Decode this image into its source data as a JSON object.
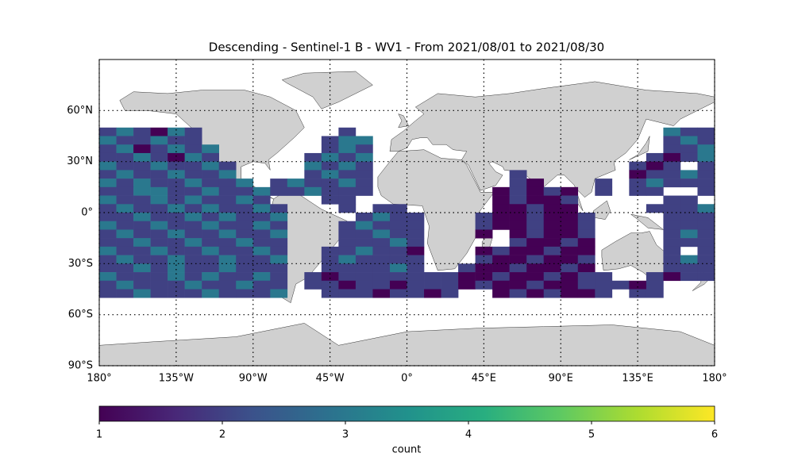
{
  "chart_data": {
    "type": "heatmap",
    "title": "Descending - Sentinel-1 B - WV1 - From 2021/08/01 to 2021/08/30",
    "colormap": "viridis",
    "lon_bins": [
      -180,
      -170,
      -160,
      -150,
      -140,
      -130,
      -120,
      -110,
      -100,
      -90,
      -80,
      -70,
      -60,
      -50,
      -40,
      -30,
      -20,
      -10,
      0,
      10,
      20,
      30,
      40,
      50,
      60,
      70,
      80,
      90,
      100,
      110,
      120,
      130,
      140,
      150,
      160,
      170,
      180
    ],
    "lat_bins": [
      50,
      45,
      40,
      35,
      30,
      25,
      20,
      15,
      10,
      5,
      0,
      -5,
      -10,
      -15,
      -20,
      -25,
      -30,
      -35,
      -40,
      -45,
      -50
    ],
    "values": [
      [
        2,
        3,
        2,
        1,
        3,
        2,
        null,
        null,
        null,
        null,
        null,
        null,
        null,
        null,
        2,
        null,
        null,
        null,
        null,
        null,
        null,
        null,
        null,
        null,
        null,
        null,
        null,
        null,
        null,
        null,
        null,
        null,
        null,
        3,
        2,
        2
      ],
      [
        3,
        2,
        2,
        3,
        2,
        2,
        null,
        null,
        null,
        null,
        null,
        null,
        null,
        2,
        3,
        3,
        null,
        null,
        null,
        null,
        null,
        null,
        null,
        null,
        null,
        null,
        null,
        null,
        null,
        null,
        null,
        null,
        null,
        2,
        3,
        2
      ],
      [
        2,
        3,
        1,
        2,
        3,
        2,
        3,
        null,
        null,
        null,
        null,
        null,
        null,
        2,
        3,
        2,
        null,
        null,
        null,
        null,
        null,
        null,
        null,
        null,
        null,
        null,
        null,
        null,
        null,
        null,
        null,
        null,
        null,
        2,
        2,
        3
      ],
      [
        2,
        2,
        3,
        2,
        1,
        3,
        2,
        null,
        null,
        null,
        null,
        null,
        2,
        3,
        2,
        3,
        null,
        null,
        null,
        null,
        null,
        null,
        null,
        null,
        null,
        null,
        null,
        null,
        null,
        null,
        null,
        null,
        2,
        1,
        2,
        3
      ],
      [
        3,
        2,
        2,
        3,
        2,
        2,
        3,
        2,
        null,
        null,
        null,
        null,
        3,
        2,
        3,
        2,
        null,
        null,
        null,
        null,
        null,
        null,
        null,
        null,
        null,
        null,
        null,
        null,
        null,
        null,
        null,
        2,
        1,
        2,
        null,
        2
      ],
      [
        2,
        3,
        2,
        2,
        3,
        2,
        2,
        3,
        null,
        null,
        null,
        null,
        2,
        3,
        2,
        2,
        null,
        null,
        null,
        null,
        null,
        null,
        null,
        null,
        2,
        null,
        null,
        null,
        null,
        null,
        null,
        1,
        2,
        2,
        3,
        2
      ],
      [
        3,
        2,
        3,
        2,
        2,
        3,
        2,
        2,
        3,
        null,
        2,
        3,
        2,
        2,
        3,
        2,
        null,
        null,
        null,
        null,
        null,
        null,
        null,
        null,
        2,
        1,
        null,
        null,
        null,
        2,
        null,
        2,
        3,
        2,
        2,
        2
      ],
      [
        2,
        2,
        3,
        3,
        2,
        2,
        3,
        2,
        2,
        3,
        2,
        2,
        3,
        2,
        2,
        2,
        null,
        null,
        null,
        null,
        null,
        null,
        null,
        1,
        2,
        1,
        2,
        1,
        null,
        2,
        null,
        2,
        2,
        null,
        null,
        2
      ],
      [
        3,
        2,
        2,
        3,
        2,
        3,
        2,
        2,
        3,
        2,
        null,
        null,
        null,
        2,
        2,
        null,
        null,
        null,
        null,
        null,
        null,
        null,
        null,
        1,
        2,
        1,
        1,
        2,
        null,
        null,
        null,
        null,
        null,
        2,
        2,
        null
      ],
      [
        2,
        3,
        2,
        2,
        3,
        2,
        3,
        2,
        2,
        3,
        2,
        null,
        null,
        null,
        2,
        null,
        2,
        2,
        null,
        null,
        null,
        null,
        null,
        1,
        1,
        2,
        1,
        1,
        null,
        null,
        null,
        null,
        2,
        2,
        2,
        3
      ],
      [
        2,
        2,
        3,
        2,
        2,
        3,
        2,
        3,
        2,
        2,
        3,
        null,
        null,
        null,
        null,
        2,
        3,
        2,
        2,
        null,
        null,
        null,
        2,
        1,
        1,
        2,
        1,
        1,
        2,
        null,
        null,
        null,
        null,
        2,
        2,
        2
      ],
      [
        3,
        2,
        2,
        3,
        2,
        2,
        3,
        2,
        2,
        3,
        2,
        null,
        null,
        null,
        2,
        3,
        2,
        2,
        2,
        null,
        null,
        null,
        2,
        1,
        1,
        2,
        1,
        1,
        2,
        null,
        null,
        null,
        null,
        2,
        2,
        2
      ],
      [
        2,
        3,
        2,
        2,
        3,
        2,
        2,
        3,
        2,
        2,
        3,
        null,
        null,
        null,
        2,
        2,
        3,
        2,
        2,
        null,
        null,
        null,
        1,
        null,
        1,
        2,
        1,
        1,
        2,
        null,
        null,
        null,
        null,
        2,
        3,
        2
      ],
      [
        2,
        2,
        3,
        2,
        2,
        3,
        2,
        2,
        3,
        2,
        2,
        null,
        null,
        null,
        2,
        2,
        2,
        3,
        2,
        null,
        null,
        null,
        null,
        null,
        2,
        1,
        1,
        2,
        1,
        null,
        null,
        null,
        null,
        2,
        2,
        2
      ],
      [
        3,
        2,
        2,
        3,
        2,
        2,
        3,
        2,
        2,
        3,
        2,
        null,
        null,
        2,
        2,
        3,
        2,
        2,
        1,
        null,
        null,
        null,
        1,
        2,
        1,
        1,
        2,
        1,
        1,
        null,
        null,
        null,
        null,
        2,
        null,
        2
      ],
      [
        2,
        3,
        2,
        2,
        3,
        2,
        2,
        3,
        2,
        2,
        3,
        null,
        null,
        2,
        3,
        2,
        2,
        2,
        2,
        null,
        null,
        null,
        2,
        1,
        1,
        2,
        1,
        1,
        2,
        null,
        null,
        null,
        null,
        2,
        3,
        2
      ],
      [
        2,
        2,
        3,
        2,
        3,
        2,
        2,
        3,
        2,
        2,
        2,
        null,
        null,
        2,
        2,
        2,
        2,
        3,
        2,
        null,
        null,
        2,
        1,
        1,
        2,
        1,
        1,
        2,
        1,
        null,
        null,
        null,
        null,
        2,
        2,
        2
      ],
      [
        3,
        2,
        2,
        2,
        3,
        2,
        3,
        2,
        2,
        3,
        2,
        null,
        2,
        1,
        2,
        2,
        2,
        2,
        2,
        2,
        2,
        1,
        1,
        2,
        1,
        1,
        2,
        1,
        2,
        2,
        null,
        null,
        2,
        1,
        2,
        2
      ],
      [
        2,
        3,
        2,
        2,
        2,
        3,
        2,
        2,
        3,
        2,
        2,
        null,
        2,
        2,
        1,
        2,
        2,
        1,
        2,
        2,
        2,
        1,
        2,
        1,
        1,
        2,
        1,
        1,
        2,
        2,
        2,
        1,
        2,
        null,
        null,
        null
      ],
      [
        2,
        2,
        3,
        2,
        2,
        2,
        3,
        2,
        2,
        2,
        3,
        null,
        null,
        2,
        2,
        2,
        1,
        2,
        2,
        1,
        2,
        null,
        null,
        1,
        2,
        1,
        2,
        1,
        1,
        2,
        null,
        2,
        2,
        null,
        null,
        null
      ]
    ],
    "xlim": [
      -180,
      180
    ],
    "ylim": [
      -90,
      90
    ],
    "xticks": [
      {
        "value": -180,
        "label": "180°"
      },
      {
        "value": -135,
        "label": "135°W"
      },
      {
        "value": -90,
        "label": "90°W"
      },
      {
        "value": -45,
        "label": "45°W"
      },
      {
        "value": 0,
        "label": "0°"
      },
      {
        "value": 45,
        "label": "45°E"
      },
      {
        "value": 90,
        "label": "90°E"
      },
      {
        "value": 135,
        "label": "135°E"
      },
      {
        "value": 180,
        "label": "180°"
      }
    ],
    "yticks": [
      {
        "value": -90,
        "label": "90°S"
      },
      {
        "value": -60,
        "label": "60°S"
      },
      {
        "value": -30,
        "label": "30°S"
      },
      {
        "value": 0,
        "label": "0°"
      },
      {
        "value": 30,
        "label": "30°N"
      },
      {
        "value": 60,
        "label": "60°N"
      }
    ],
    "grid": true,
    "colorbar": {
      "label": "count",
      "lim": [
        1,
        6
      ],
      "ticks": [
        1,
        2,
        3,
        4,
        5,
        6
      ]
    }
  }
}
